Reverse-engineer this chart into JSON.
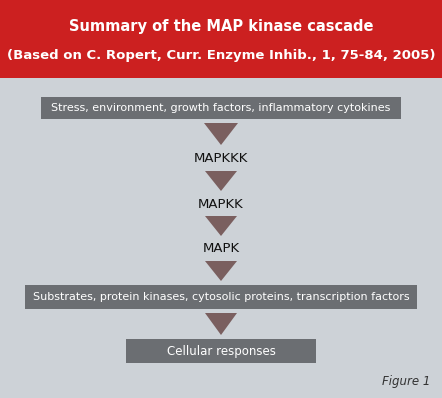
{
  "title_line1": "Summary of the MAP kinase cascade",
  "title_line2": "(Based on C. Ropert, Curr. Enzyme Inhib., 1, 75-84, 2005)",
  "title_bg_color": "#cc2020",
  "title_text_color": "#ffffff",
  "bg_color": "#cdd2d7",
  "box_color": "#6b6e72",
  "box_text_color": "#ffffff",
  "arrow_color": "#7a5f5f",
  "label_color": "#111111",
  "box1_text": "Stress, environment, growth factors, inflammatory cytokines",
  "label1": "MAPKKK",
  "label2": "MAPKK",
  "label3": "MAPK",
  "box2_text": "Substrates, protein kinases, cytosolic proteins, transcription factors",
  "box3_text": "Cellular responses",
  "figure_label": "Figure 1",
  "fig_width": 4.42,
  "fig_height": 3.98,
  "dpi": 100
}
